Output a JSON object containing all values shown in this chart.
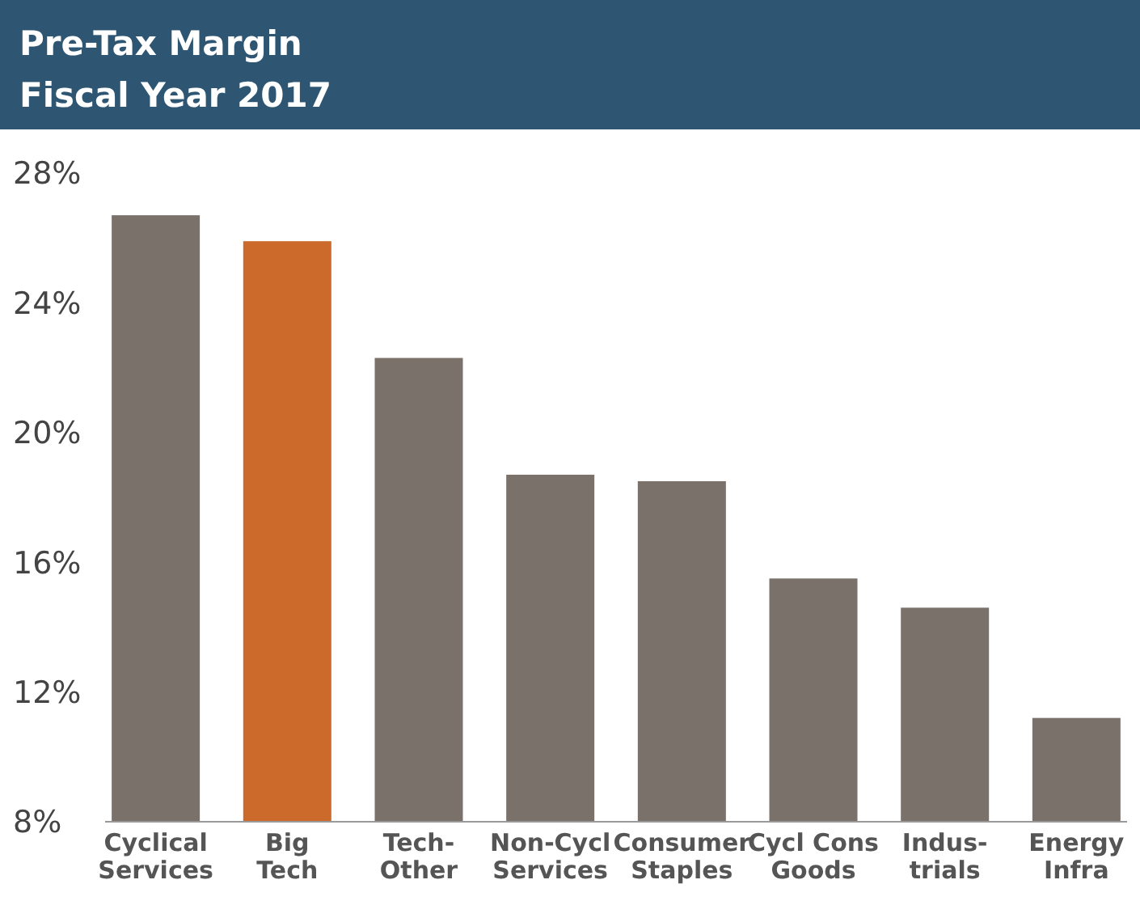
{
  "chart_data": {
    "type": "bar",
    "title": "Pre-Tax Margin",
    "subtitle": "Fiscal Year 2017",
    "categories": [
      "Cyclical\nServices",
      "Big\nTech",
      "Tech-\nOther",
      "Non-Cycl\nServices",
      "Consumer\nStaples",
      "Cycl Cons\nGoods",
      "Indus-\ntrials",
      "Energy\nInfra"
    ],
    "values": [
      26.7,
      25.9,
      22.3,
      18.7,
      18.5,
      15.5,
      14.6,
      11.2
    ],
    "colors": [
      "#7a716b",
      "#cc6a2c",
      "#7a716b",
      "#7a716b",
      "#7a716b",
      "#7a716b",
      "#7a716b",
      "#7a716b"
    ],
    "ylim": [
      8,
      28
    ],
    "yticks": [
      {
        "value": 8,
        "label": "8%"
      },
      {
        "value": 12,
        "label": "12%"
      },
      {
        "value": 16,
        "label": "16%"
      },
      {
        "value": 20,
        "label": "20%"
      },
      {
        "value": 24,
        "label": "24%"
      },
      {
        "value": 28,
        "label": "28%"
      }
    ],
    "grid": false
  }
}
